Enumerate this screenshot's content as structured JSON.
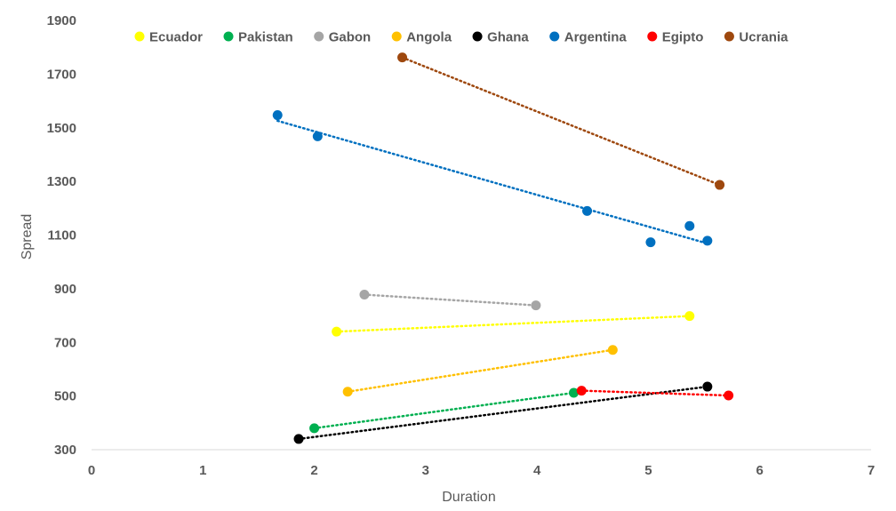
{
  "chart_data": {
    "type": "scatter",
    "xlabel": "Duration",
    "ylabel": "Spread",
    "xlim": [
      0,
      7
    ],
    "ylim": [
      300,
      1900
    ],
    "xticks": [
      0,
      1,
      2,
      3,
      4,
      5,
      6,
      7
    ],
    "yticks": [
      300,
      500,
      700,
      900,
      1100,
      1300,
      1500,
      1700,
      1900
    ],
    "grid": false,
    "legend_position": "top",
    "trendline": "linear, dotted",
    "series": [
      {
        "name": "Ecuador",
        "color": "#FFFF00",
        "points": [
          [
            2.2,
            740
          ],
          [
            5.37,
            798
          ]
        ]
      },
      {
        "name": "Pakistan",
        "color": "#00B050",
        "points": [
          [
            2.0,
            380
          ],
          [
            4.33,
            512
          ]
        ]
      },
      {
        "name": "Gabon",
        "color": "#A5A5A5",
        "points": [
          [
            2.45,
            878
          ],
          [
            3.99,
            838
          ]
        ]
      },
      {
        "name": "Angola",
        "color": "#FFC000",
        "points": [
          [
            2.3,
            516
          ],
          [
            4.68,
            672
          ]
        ]
      },
      {
        "name": "Ghana",
        "color": "#000000",
        "points": [
          [
            1.86,
            340
          ],
          [
            5.53,
            535
          ]
        ]
      },
      {
        "name": "Argentina",
        "color": "#0070C0",
        "points": [
          [
            1.67,
            1547
          ],
          [
            2.03,
            1468
          ],
          [
            4.45,
            1190
          ],
          [
            5.02,
            1073
          ],
          [
            5.37,
            1134
          ],
          [
            5.53,
            1079
          ]
        ]
      },
      {
        "name": "Egipto",
        "color": "#FF0000",
        "points": [
          [
            4.4,
            520
          ],
          [
            5.72,
            502
          ]
        ]
      },
      {
        "name": "Ucrania",
        "color": "#9E480E",
        "points": [
          [
            2.79,
            1762
          ],
          [
            5.64,
            1287
          ]
        ]
      }
    ]
  }
}
